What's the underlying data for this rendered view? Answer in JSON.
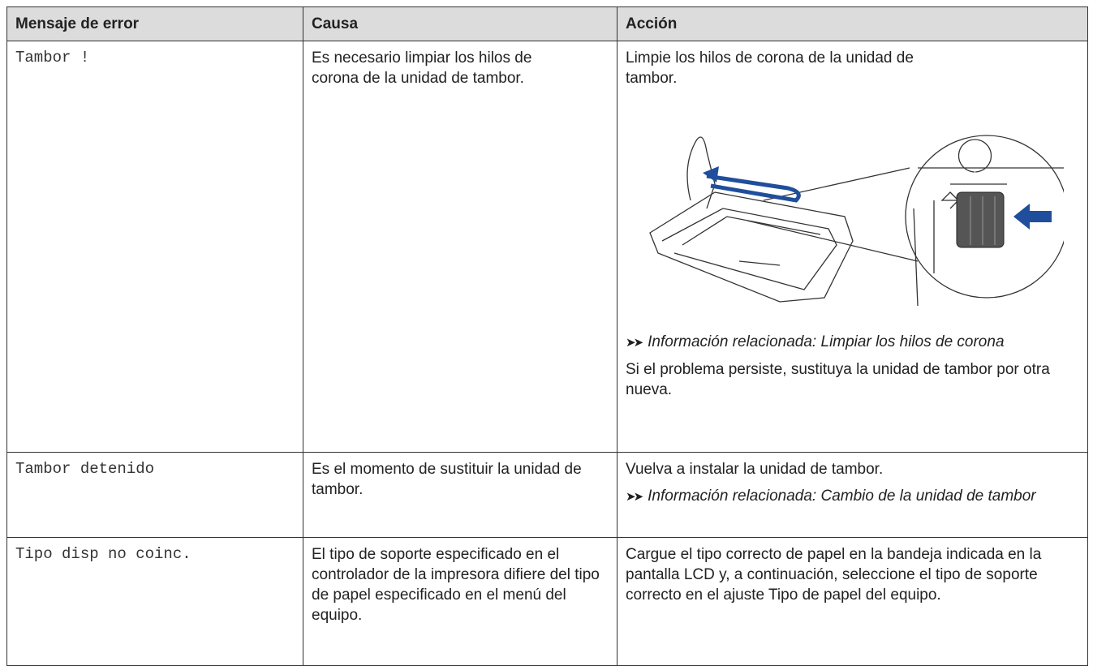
{
  "table": {
    "headers": [
      "Mensaje de error",
      "Causa",
      "Acción"
    ],
    "rows": [
      {
        "message": "Tambor !",
        "cause": "Es necesario limpiar los hilos de corona de la unidad de tambor.",
        "action": {
          "text": "Limpie los hilos de corona de la unidad de tambor.",
          "related_label": "Información relacionada:",
          "related_link": "Limpiar los hilos de corona",
          "note": "Si el problema persiste, sustituya la unidad de tambor por otra nueva."
        }
      },
      {
        "message": "Tambor detenido",
        "cause": "Es el momento de sustituir la unidad de tambor.",
        "action": {
          "text": "Vuelva a instalar la unidad de tambor.",
          "related_label": "Información relacionada:",
          "related_link": "Cambio de la unidad de tambor"
        }
      },
      {
        "message": "Tipo disp no coinc.",
        "cause": "El tipo de soporte especificado en el controlador de la impresora difiere del tipo de papel especificado en el menú del equipo.",
        "action": {
          "text": "Cargue el tipo correcto de papel en la bandeja indicada en la pantalla LCD y, a continuación, seleccione el tipo de soporte correcto en el ajuste Tipo de papel del equipo."
        }
      }
    ]
  }
}
